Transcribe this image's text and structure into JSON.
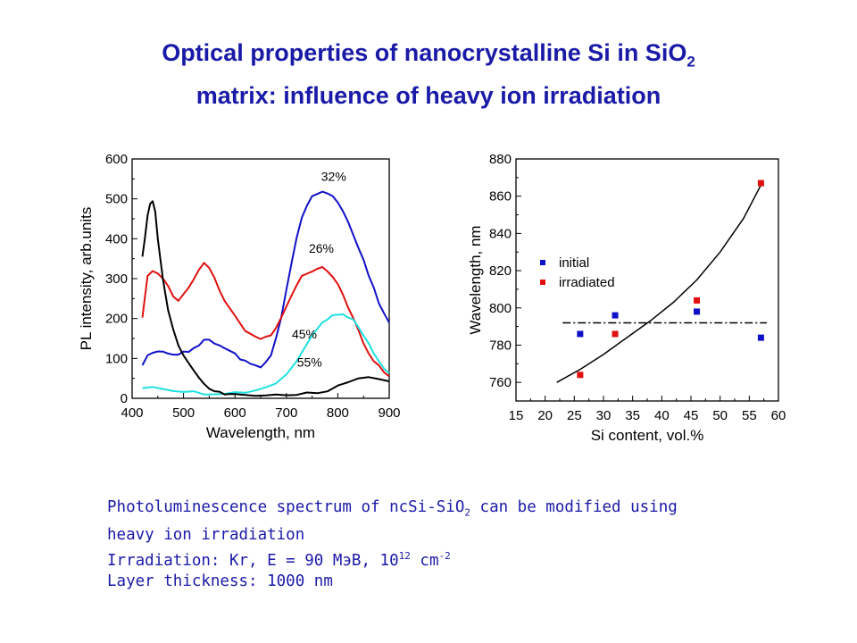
{
  "slide": {
    "title_line1_main": "Optical properties of nanocrystalline Si in SiO",
    "title_line1_sub": "2",
    "title_line2": "matrix: influence of heavy ion irradiation",
    "caption": {
      "line1_a": "Photoluminescence spectrum of ncSi-SiO",
      "line1_sub": "2",
      "line1_b": " can be modified using",
      "line2": "heavy ion irradiation",
      "line3_a": "Irradiation: Kr, E = 90 МэВ, 10",
      "line3_sup1": "12",
      "line3_b": " cm",
      "line3_sup2": "-2",
      "line4": "Layer thickness: 1000 nm"
    }
  },
  "chart_data": [
    {
      "type": "line",
      "xlabel": "Wavelength, nm",
      "ylabel": "PL intensity, arb.units",
      "xlim": [
        400,
        900
      ],
      "ylim": [
        0,
        600
      ],
      "xticks": [
        400,
        500,
        600,
        700,
        800,
        900
      ],
      "yticks": [
        0,
        100,
        200,
        300,
        400,
        500,
        600
      ],
      "series": [
        {
          "name": "32%",
          "color": "#1010c8",
          "x": [
            420,
            430,
            440,
            450,
            460,
            470,
            480,
            490,
            500,
            510,
            520,
            530,
            540,
            550,
            560,
            570,
            580,
            590,
            600,
            610,
            620,
            630,
            640,
            650,
            660,
            670,
            680,
            690,
            700,
            710,
            720,
            730,
            740,
            750,
            760,
            770,
            780,
            790,
            800,
            810,
            820,
            830,
            840,
            850,
            860,
            870,
            880,
            890,
            900
          ],
          "y": [
            80,
            105,
            115,
            120,
            118,
            110,
            108,
            112,
            115,
            118,
            125,
            135,
            145,
            148,
            140,
            130,
            125,
            118,
            110,
            100,
            95,
            88,
            82,
            80,
            90,
            110,
            150,
            200,
            270,
            340,
            400,
            450,
            485,
            505,
            515,
            520,
            515,
            505,
            490,
            470,
            440,
            410,
            380,
            345,
            310,
            275,
            240,
            215,
            190
          ]
        },
        {
          "name": "26%",
          "color": "#e01010",
          "x": [
            420,
            430,
            440,
            450,
            460,
            470,
            480,
            490,
            500,
            510,
            520,
            530,
            540,
            550,
            560,
            570,
            580,
            590,
            600,
            610,
            620,
            630,
            640,
            650,
            660,
            670,
            680,
            690,
            700,
            710,
            720,
            730,
            740,
            750,
            760,
            770,
            780,
            790,
            800,
            810,
            820,
            830,
            840,
            850,
            860,
            870,
            880,
            890,
            900
          ],
          "y": [
            200,
            305,
            320,
            315,
            300,
            280,
            255,
            245,
            260,
            280,
            300,
            320,
            338,
            325,
            300,
            270,
            245,
            225,
            205,
            185,
            170,
            160,
            152,
            150,
            152,
            160,
            175,
            200,
            230,
            260,
            285,
            305,
            315,
            320,
            325,
            328,
            320,
            305,
            285,
            260,
            230,
            200,
            170,
            140,
            115,
            95,
            80,
            65,
            55
          ]
        },
        {
          "name": "45%",
          "color": "#20e0e0",
          "x": [
            420,
            440,
            460,
            480,
            500,
            520,
            540,
            560,
            580,
            600,
            620,
            640,
            660,
            680,
            700,
            720,
            740,
            750,
            760,
            770,
            780,
            790,
            800,
            810,
            820,
            830,
            840,
            850,
            860,
            870,
            880,
            890,
            900
          ],
          "y": [
            25,
            28,
            25,
            20,
            18,
            15,
            12,
            12,
            12,
            13,
            15,
            18,
            25,
            40,
            60,
            95,
            135,
            155,
            175,
            190,
            200,
            208,
            212,
            210,
            205,
            195,
            180,
            160,
            140,
            115,
            95,
            75,
            60
          ]
        },
        {
          "name": "55%",
          "color": "#000000",
          "x": [
            420,
            425,
            430,
            435,
            440,
            445,
            450,
            460,
            470,
            480,
            490,
            500,
            510,
            520,
            530,
            540,
            550,
            560,
            570,
            580,
            590,
            600,
            620,
            640,
            660,
            680,
            700,
            720,
            740,
            760,
            780,
            800,
            820,
            840,
            860,
            880,
            900
          ],
          "y": [
            355,
            400,
            460,
            490,
            495,
            470,
            400,
            300,
            220,
            170,
            135,
            110,
            90,
            70,
            50,
            35,
            25,
            20,
            15,
            12,
            10,
            8,
            7,
            6,
            6,
            7,
            8,
            10,
            12,
            15,
            20,
            30,
            40,
            48,
            52,
            48,
            40
          ]
        }
      ],
      "annotations": [
        {
          "text": "32%",
          "x": 792,
          "y": 545
        },
        {
          "text": "26%",
          "x": 768,
          "y": 365
        },
        {
          "text": "45%",
          "x": 735,
          "y": 150
        },
        {
          "text": "55%",
          "x": 745,
          "y": 80
        }
      ]
    },
    {
      "type": "scatter",
      "xlabel": "Si content, vol.%",
      "ylabel": "Wavelength, nm",
      "xlim": [
        15,
        60
      ],
      "ylim": [
        750,
        880
      ],
      "xticks": [
        15,
        20,
        25,
        30,
        35,
        40,
        45,
        50,
        55,
        60
      ],
      "yticks": [
        760,
        780,
        800,
        820,
        840,
        860,
        880
      ],
      "legend": {
        "placement": "upper-left"
      },
      "series": [
        {
          "name": "initial",
          "color": "#1010c8",
          "x": [
            26,
            32,
            46,
            57
          ],
          "y": [
            786,
            796,
            798,
            784
          ]
        },
        {
          "name": "irradiated",
          "color": "#e01010",
          "x": [
            26,
            32,
            46,
            57
          ],
          "y": [
            764,
            786,
            804,
            867
          ]
        }
      ],
      "fit_curve": {
        "x": [
          22,
          26,
          30,
          34,
          38,
          42,
          46,
          50,
          54,
          57
        ],
        "y": [
          760,
          767,
          775,
          784,
          793,
          803,
          815,
          830,
          848,
          866
        ]
      },
      "dash_dot_line": {
        "x": [
          23,
          58
        ],
        "y": [
          792,
          792
        ]
      }
    }
  ]
}
